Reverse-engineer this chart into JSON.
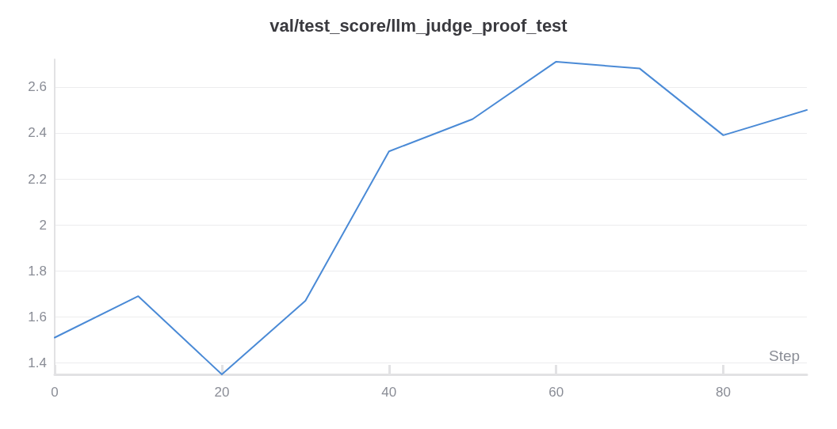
{
  "chart_data": {
    "type": "line",
    "title": "val/test_score/llm_judge_proof_test",
    "xlabel": "Step",
    "x": [
      0,
      10,
      20,
      30,
      40,
      50,
      60,
      70,
      80,
      90
    ],
    "series": [
      {
        "color": "#4a8ad6",
        "values": [
          1.51,
          1.69,
          1.35,
          1.67,
          2.32,
          2.46,
          2.71,
          2.68,
          2.39,
          2.5
        ]
      }
    ],
    "xlim": [
      0,
      90
    ],
    "xticks": [
      0,
      20,
      40,
      60,
      80
    ],
    "ylim": [
      1.35,
      2.72
    ],
    "yticks": [
      1.4,
      1.6,
      1.8,
      2,
      2.2,
      2.4,
      2.6
    ],
    "grid": "y",
    "marker": "none",
    "line_style": "solid"
  }
}
